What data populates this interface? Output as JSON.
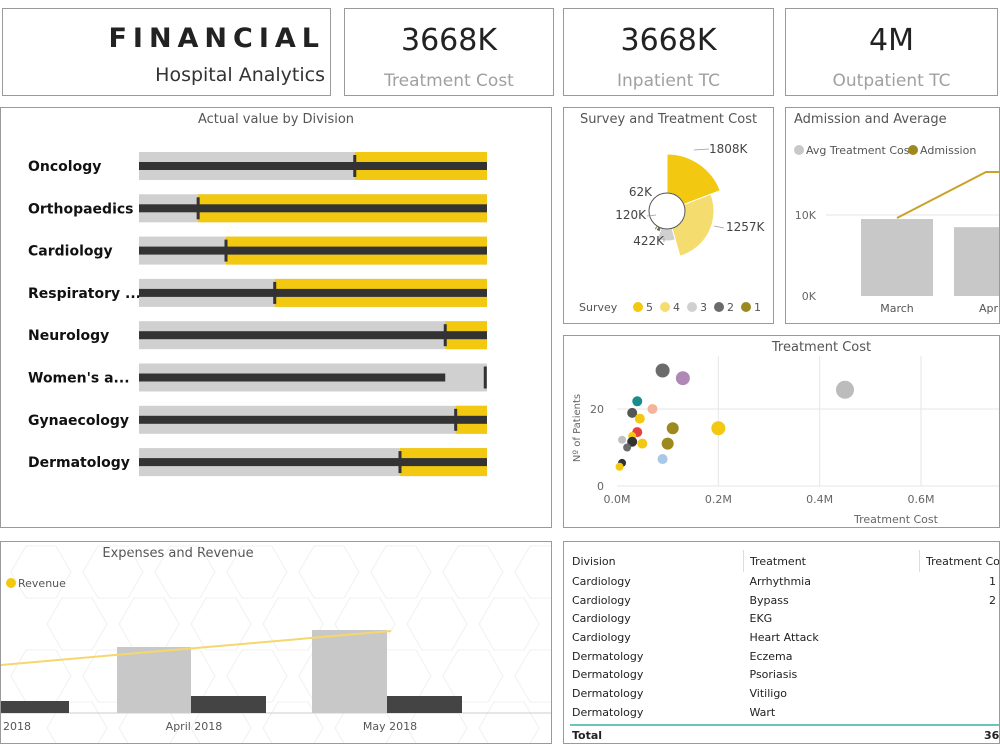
{
  "header": {
    "title": "FINANCIAL",
    "subtitle": "Hospital Analytics"
  },
  "kpis": [
    {
      "value": "3668K",
      "label": "Treatment  Cost"
    },
    {
      "value": "3668K",
      "label": "Inpatient TC"
    },
    {
      "value": "4M",
      "label": "Outpatient TC"
    }
  ],
  "bullet_chart": {
    "title": "Actual value by Division",
    "divisions": [
      {
        "name": "Oncology",
        "target_frac": 0.62,
        "yellow_start_frac": 0.62,
        "bar_end_frac": 1.0
      },
      {
        "name": "Orthopaedics",
        "target_frac": 0.17,
        "yellow_start_frac": 0.17,
        "bar_end_frac": 1.0
      },
      {
        "name": "Cardiology",
        "target_frac": 0.25,
        "yellow_start_frac": 0.25,
        "bar_end_frac": 1.0
      },
      {
        "name": "Respiratory ...",
        "target_frac": 0.39,
        "yellow_start_frac": 0.39,
        "bar_end_frac": 1.0
      },
      {
        "name": "Neurology",
        "target_frac": 0.88,
        "yellow_start_frac": 0.88,
        "bar_end_frac": 1.0
      },
      {
        "name": "Women's a...",
        "target_frac": 0.995,
        "yellow_start_frac": null,
        "bar_end_frac": 0.88
      },
      {
        "name": "Gynaecology",
        "target_frac": 0.91,
        "yellow_start_frac": 0.91,
        "bar_end_frac": 1.0
      },
      {
        "name": "Dermatology",
        "target_frac": 0.75,
        "yellow_start_frac": 0.75,
        "bar_end_frac": 1.0
      }
    ]
  },
  "survey_chart": {
    "title": "Survey and Treatment Cost",
    "legend_title": "Survey",
    "legend": [
      {
        "label": "5",
        "color": "#f2c811"
      },
      {
        "label": "4",
        "color": "#f5dc6e"
      },
      {
        "label": "3",
        "color": "#d0d0d0"
      },
      {
        "label": "2",
        "color": "#6b6b6b"
      },
      {
        "label": "1",
        "color": "#9c8a1f"
      }
    ],
    "slices": [
      {
        "survey": "5",
        "value_label": "1808K",
        "color": "#f2c811",
        "start_deg": 0,
        "end_deg": 69,
        "radius": 57
      },
      {
        "survey": "4",
        "value_label": "1257K",
        "color": "#f5dc6e",
        "start_deg": 69,
        "end_deg": 164,
        "radius": 47
      },
      {
        "survey": "3",
        "value_label": "422K",
        "color": "#d0d0d0",
        "start_deg": 164,
        "end_deg": 199,
        "radius": 30
      },
      {
        "survey": "2",
        "value_label": "120K",
        "color": "#6b6b6b",
        "start_deg": 199,
        "end_deg": 210,
        "radius": 22
      },
      {
        "survey": "1",
        "value_label": "62K",
        "color": "#9c8a1f",
        "start_deg": 210,
        "end_deg": 216,
        "radius": 22
      }
    ]
  },
  "admission_chart": {
    "title": "Admission and Average",
    "legend": [
      {
        "label": "Avg Treatment Cost",
        "color": "#c8c8c8"
      },
      {
        "label": "Admission",
        "color": "#9c8a1f"
      }
    ],
    "yticks": [
      "10K",
      "0K"
    ],
    "bars": [
      {
        "label": "March",
        "value": 9500
      },
      {
        "label": "Apri",
        "value": 8500
      }
    ]
  },
  "scatter_chart": {
    "title": "Treatment Cost",
    "xlabel": "Treatment Cost",
    "ylabel": "Nº of Patients",
    "xticks": [
      "0.0M",
      "0.2M",
      "0.4M",
      "0.6M"
    ],
    "yticks": [
      "0",
      "20"
    ],
    "points": [
      {
        "x": 0.09,
        "y": 30,
        "color": "#6b6b6b",
        "r": 7
      },
      {
        "x": 0.13,
        "y": 28,
        "color": "#b088b8",
        "r": 7
      },
      {
        "x": 0.45,
        "y": 25,
        "color": "#bcbcbc",
        "r": 9
      },
      {
        "x": 0.04,
        "y": 22,
        "color": "#1a8c8c",
        "r": 5
      },
      {
        "x": 0.07,
        "y": 20,
        "color": "#f4b49a",
        "r": 5
      },
      {
        "x": 0.03,
        "y": 19,
        "color": "#555555",
        "r": 5
      },
      {
        "x": 0.045,
        "y": 17.5,
        "color": "#f2c811",
        "r": 5
      },
      {
        "x": 0.11,
        "y": 15,
        "color": "#9c8a1f",
        "r": 6
      },
      {
        "x": 0.2,
        "y": 15,
        "color": "#f2c811",
        "r": 7
      },
      {
        "x": 0.04,
        "y": 14,
        "color": "#e84040",
        "r": 5
      },
      {
        "x": 0.03,
        "y": 13,
        "color": "#f2c811",
        "r": 4
      },
      {
        "x": 0.01,
        "y": 12,
        "color": "#c0c0c0",
        "r": 4
      },
      {
        "x": 0.03,
        "y": 11.5,
        "color": "#333333",
        "r": 5
      },
      {
        "x": 0.05,
        "y": 11,
        "color": "#f2c811",
        "r": 5
      },
      {
        "x": 0.1,
        "y": 11,
        "color": "#9c8a1f",
        "r": 6
      },
      {
        "x": 0.02,
        "y": 10,
        "color": "#6b6b6b",
        "r": 4
      },
      {
        "x": 0.09,
        "y": 7,
        "color": "#a8c8e8",
        "r": 5
      },
      {
        "x": 0.01,
        "y": 6,
        "color": "#333333",
        "r": 4
      },
      {
        "x": 0.005,
        "y": 5,
        "color": "#f2c811",
        "r": 4
      }
    ]
  },
  "expenses_chart": {
    "title": "Expenses and Revenue",
    "legend": [
      {
        "label": "Revenue",
        "color": "#f2c811"
      }
    ],
    "xlabels": [
      "2018",
      "April 2018",
      "May 2018"
    ]
  },
  "table": {
    "columns": [
      "Division",
      "Treatment",
      "Treatment Cost"
    ],
    "rows": [
      [
        "Cardiology",
        "Arrhythmia",
        "1"
      ],
      [
        "Cardiology",
        "Bypass",
        "2"
      ],
      [
        "Cardiology",
        "EKG",
        ""
      ],
      [
        "Cardiology",
        "Heart Attack",
        ""
      ],
      [
        "Dermatology",
        "Eczema",
        ""
      ],
      [
        "Dermatology",
        "Psoriasis",
        ""
      ],
      [
        "Dermatology",
        "Vitiligo",
        ""
      ],
      [
        "Dermatology",
        "Wart",
        ""
      ]
    ],
    "total_label": "Total",
    "total_value": "36"
  },
  "colors": {
    "accent_yellow": "#f2c811",
    "gray_bar": "#d0d0d0",
    "dark_bar": "#333333",
    "border": "#9a9a9a"
  }
}
